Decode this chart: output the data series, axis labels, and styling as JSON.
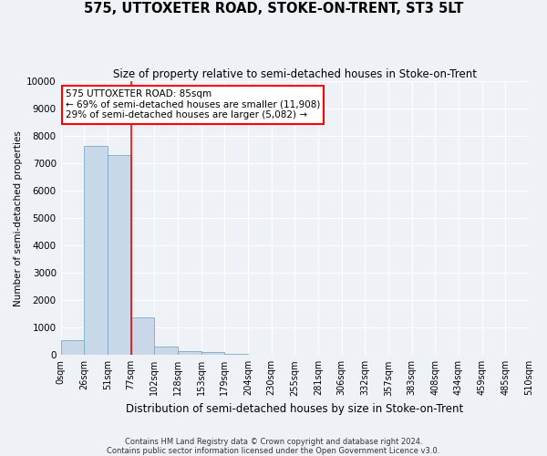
{
  "title": "575, UTTOXETER ROAD, STOKE-ON-TRENT, ST3 5LT",
  "subtitle": "Size of property relative to semi-detached houses in Stoke-on-Trent",
  "xlabel": "Distribution of semi-detached houses by size in Stoke-on-Trent",
  "ylabel": "Number of semi-detached properties",
  "footer_line1": "Contains HM Land Registry data © Crown copyright and database right 2024.",
  "footer_line2": "Contains public sector information licensed under the Open Government Licence v3.0.",
  "bar_values": [
    550,
    7650,
    7300,
    1370,
    320,
    145,
    100,
    60,
    0,
    0,
    0,
    0,
    0,
    0,
    0,
    0,
    0,
    0,
    0,
    0
  ],
  "bar_labels": [
    "0sqm",
    "26sqm",
    "51sqm",
    "77sqm",
    "102sqm",
    "128sqm",
    "153sqm",
    "179sqm",
    "204sqm",
    "230sqm",
    "255sqm",
    "281sqm",
    "306sqm",
    "332sqm",
    "357sqm",
    "383sqm",
    "408sqm",
    "434sqm",
    "459sqm",
    "485sqm",
    "510sqm"
  ],
  "ylim": [
    0,
    10000
  ],
  "yticks": [
    0,
    1000,
    2000,
    3000,
    4000,
    5000,
    6000,
    7000,
    8000,
    9000,
    10000
  ],
  "bar_color": "#c8d8e8",
  "bar_edge_color": "#7aaac8",
  "annotation_title": "575 UTTOXETER ROAD: 85sqm",
  "annotation_line1": "← 69% of semi-detached houses are smaller (11,908)",
  "annotation_line2": "29% of semi-detached houses are larger (5,082) →",
  "vline_x_index": 3,
  "background_color": "#eef2f7",
  "grid_color": "#ffffff"
}
